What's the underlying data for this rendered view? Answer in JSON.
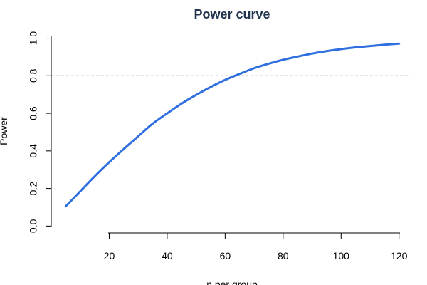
{
  "chart_data": {
    "type": "line",
    "title": "Power curve",
    "xlabel": "n per group",
    "ylabel": "Power",
    "xlim": [
      0,
      124
    ],
    "ylim": [
      -0.01,
      1.04
    ],
    "xticks": [
      20,
      40,
      60,
      80,
      100,
      120
    ],
    "yticks": [
      0.0,
      0.2,
      0.4,
      0.6,
      0.8,
      1.0
    ],
    "xtick_labels": [
      "20",
      "40",
      "60",
      "80",
      "100",
      "120"
    ],
    "ytick_labels": [
      "0.0",
      "0.2",
      "0.4",
      "0.6",
      "0.8",
      "1.0"
    ],
    "grid": false,
    "series": [
      {
        "x": [
          5,
          10,
          15,
          20,
          25,
          30,
          35,
          40,
          45,
          50,
          55,
          60,
          65,
          70,
          75,
          80,
          85,
          90,
          95,
          100,
          105,
          110,
          115,
          120
        ],
        "y": [
          0.105,
          0.185,
          0.265,
          0.34,
          0.41,
          0.478,
          0.545,
          0.6,
          0.652,
          0.698,
          0.74,
          0.778,
          0.81,
          0.84,
          0.864,
          0.885,
          0.902,
          0.918,
          0.931,
          0.942,
          0.951,
          0.958,
          0.965,
          0.971
        ],
        "color": "#2f6fdf"
      }
    ],
    "reference_line": {
      "y": 0.8,
      "style": "dashed",
      "color": "#23344f"
    }
  }
}
